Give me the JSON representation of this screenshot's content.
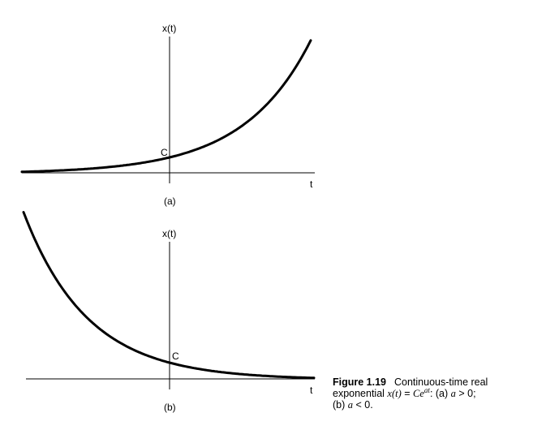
{
  "panels": [
    {
      "id": "a",
      "y_axis_label": "x(t)",
      "x_axis_label": "t",
      "intercept_label": "C",
      "sub_label": "(a)",
      "growth": "increasing"
    },
    {
      "id": "b",
      "y_axis_label": "x(t)",
      "x_axis_label": "t",
      "intercept_label": "C",
      "sub_label": "(b)",
      "growth": "decreasing"
    }
  ],
  "caption": {
    "figure_label": "Figure 1.19",
    "text_line1": "Continuous-time real",
    "text_line2_prefix": "exponential ",
    "equation_lhs": "x(t)",
    "equation_eq": " = ",
    "equation_base": "Ce",
    "equation_exp": "at",
    "text_line2_part_a": ": (a) ",
    "cond_a_var": "a",
    "cond_a_rel": " > 0;",
    "text_line3_part_b": "(b) ",
    "cond_b_var": "a",
    "cond_b_rel": " < 0."
  }
}
